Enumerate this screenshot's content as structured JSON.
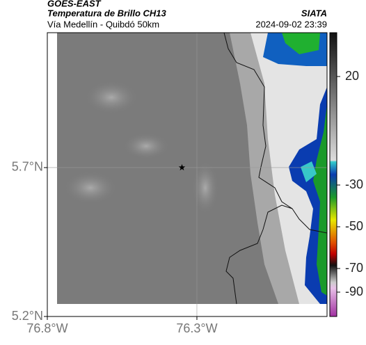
{
  "header": {
    "line1": "GOES-EAST",
    "line2": "Temperatura de Brillo CH13",
    "subtitle": "Vía Medellín - Quibdó 50km",
    "source": "SIATA",
    "datetime": "2024-09-02 23:39"
  },
  "map": {
    "xlim": [
      -76.8,
      -75.865
    ],
    "ylim": [
      5.2,
      6.153
    ],
    "xticks": [
      {
        "value": -76.8,
        "label": "76.8°W"
      },
      {
        "value": -76.3,
        "label": "76.3°W"
      }
    ],
    "yticks": [
      {
        "value": 5.2,
        "label": "5.2°N"
      },
      {
        "value": 5.7,
        "label": "5.7°N"
      }
    ],
    "grid": true,
    "marker": {
      "lon": -76.35,
      "lat": 5.7
    }
  },
  "colorbar": {
    "ticks": [
      20,
      -30,
      -50,
      -70,
      -90
    ]
  }
}
